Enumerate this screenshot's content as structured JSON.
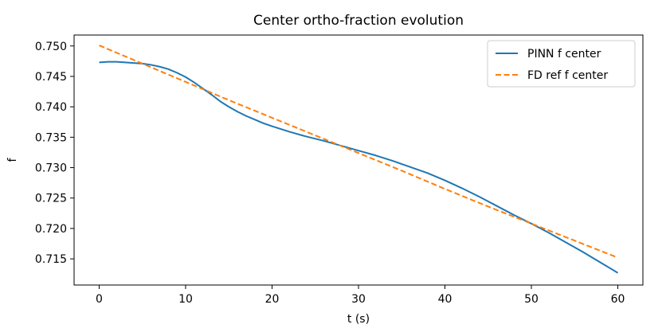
{
  "chart_data": {
    "type": "line",
    "title": "Center ortho-fraction evolution",
    "xlabel": "t (s)",
    "ylabel": "f",
    "xlim": [
      -2.9,
      62.9
    ],
    "ylim": [
      0.7107,
      0.7518
    ],
    "xticks": [
      0,
      10,
      20,
      30,
      40,
      50,
      60
    ],
    "yticks": [
      0.715,
      0.72,
      0.725,
      0.73,
      0.735,
      0.74,
      0.745,
      0.75
    ],
    "grid": false,
    "legend_position": "top-right",
    "series": [
      {
        "name": "PINN f center",
        "color": "#1f77b4",
        "style": "solid",
        "x": [
          0,
          1,
          2,
          3,
          4,
          5,
          6,
          7,
          8,
          9,
          10,
          11,
          12,
          13,
          14,
          15,
          16,
          17,
          18,
          19,
          20,
          22,
          24,
          26,
          28,
          30,
          32,
          34,
          36,
          38,
          40,
          42,
          44,
          46,
          48,
          50,
          52,
          54,
          56,
          58,
          60
        ],
        "y": [
          0.7473,
          0.7474,
          0.7474,
          0.7473,
          0.7472,
          0.7471,
          0.7469,
          0.7466,
          0.7462,
          0.7456,
          0.7449,
          0.744,
          0.743,
          0.742,
          0.7409,
          0.74,
          0.7392,
          0.7385,
          0.7379,
          0.7373,
          0.7368,
          0.7359,
          0.7351,
          0.7344,
          0.7336,
          0.7328,
          0.732,
          0.7311,
          0.7301,
          0.7291,
          0.7279,
          0.7266,
          0.7252,
          0.7237,
          0.7222,
          0.7208,
          0.7193,
          0.7177,
          0.7161,
          0.7144,
          0.7127
        ]
      },
      {
        "name": "FD ref f center",
        "color": "#ff7f0e",
        "style": "dashed",
        "x": [
          0,
          5,
          10,
          15,
          20,
          25,
          30,
          35,
          40,
          45,
          50,
          55,
          60
        ],
        "y": [
          0.7501,
          0.7471,
          0.7441,
          0.7411,
          0.7382,
          0.7353,
          0.7324,
          0.7295,
          0.7265,
          0.7236,
          0.7208,
          0.718,
          0.7152
        ]
      }
    ]
  }
}
